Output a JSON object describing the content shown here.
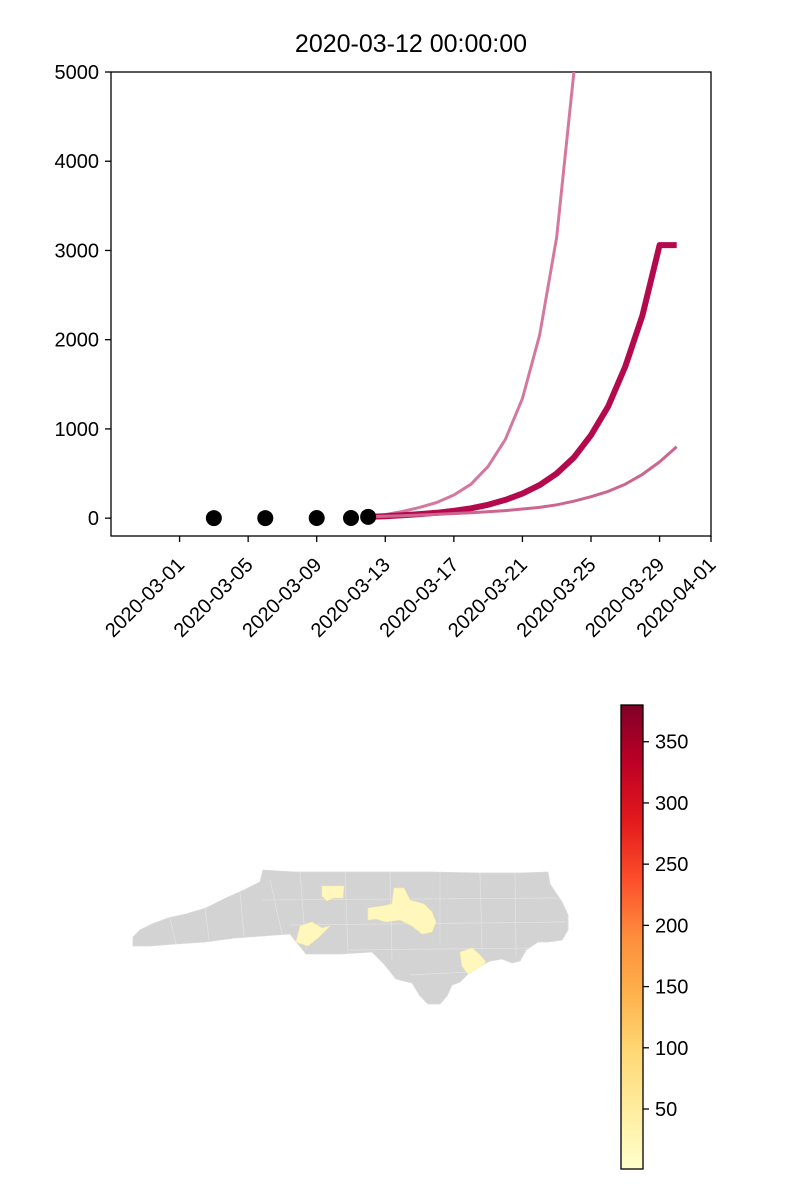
{
  "chart_data": [
    {
      "type": "line",
      "title": "2020-03-12 00:00:00",
      "xlabel": "",
      "ylabel": "",
      "x_axis": "date",
      "xlim": [
        "2020-02-26",
        "2020-04-01"
      ],
      "ylim": [
        -200,
        5000
      ],
      "x_ticks": [
        "2020-03-01",
        "2020-03-05",
        "2020-03-09",
        "2020-03-13",
        "2020-03-17",
        "2020-03-21",
        "2020-03-25",
        "2020-03-29",
        "2020-04-01"
      ],
      "y_ticks": [
        0,
        1000,
        2000,
        3000,
        4000,
        5000
      ],
      "grid": false,
      "series": [
        {
          "kind": "observed-points",
          "color": "#000000",
          "x": [
            "2020-03-03",
            "2020-03-06",
            "2020-03-09",
            "2020-03-11",
            "2020-03-12"
          ],
          "y": [
            1,
            1,
            2,
            2,
            15
          ]
        },
        {
          "kind": "projection-upper",
          "color": "#d4789f",
          "x": [
            "2020-03-12",
            "2020-03-13",
            "2020-03-14",
            "2020-03-15",
            "2020-03-16",
            "2020-03-17",
            "2020-03-18",
            "2020-03-19",
            "2020-03-20",
            "2020-03-21",
            "2020-03-22",
            "2020-03-23",
            "2020-03-24"
          ],
          "y": [
            15,
            40,
            75,
            120,
            175,
            260,
            380,
            580,
            880,
            1340,
            2050,
            3150,
            5000
          ]
        },
        {
          "kind": "projection-central",
          "color": "#b5094e",
          "x": [
            "2020-03-12",
            "2020-03-13",
            "2020-03-14",
            "2020-03-15",
            "2020-03-16",
            "2020-03-17",
            "2020-03-18",
            "2020-03-19",
            "2020-03-20",
            "2020-03-21",
            "2020-03-22",
            "2020-03-23",
            "2020-03-24",
            "2020-03-25",
            "2020-03-26",
            "2020-03-27",
            "2020-03-28",
            "2020-03-29",
            "2020-03-30"
          ],
          "y": [
            15,
            22,
            32,
            45,
            60,
            82,
            110,
            150,
            205,
            275,
            370,
            500,
            680,
            930,
            1250,
            1700,
            2270,
            3060,
            3060
          ]
        },
        {
          "kind": "projection-lower",
          "color": "#cc6690",
          "x": [
            "2020-03-12",
            "2020-03-14",
            "2020-03-16",
            "2020-03-18",
            "2020-03-20",
            "2020-03-22",
            "2020-03-23",
            "2020-03-24",
            "2020-03-25",
            "2020-03-26",
            "2020-03-27",
            "2020-03-28",
            "2020-03-29",
            "2020-03-30"
          ],
          "y": [
            15,
            28,
            42,
            60,
            85,
            120,
            150,
            190,
            240,
            300,
            380,
            490,
            630,
            800
          ]
        }
      ]
    },
    {
      "type": "choropleth",
      "region": "North Carolina counties",
      "no_data_color": "#d3d3d3",
      "colormap": "YlOrRd",
      "colorbar_range": [
        1,
        380
      ],
      "colorbar_ticks": [
        50,
        100,
        150,
        200,
        250,
        300,
        350
      ],
      "shaded_counties_color": "#fff7bc"
    }
  ]
}
